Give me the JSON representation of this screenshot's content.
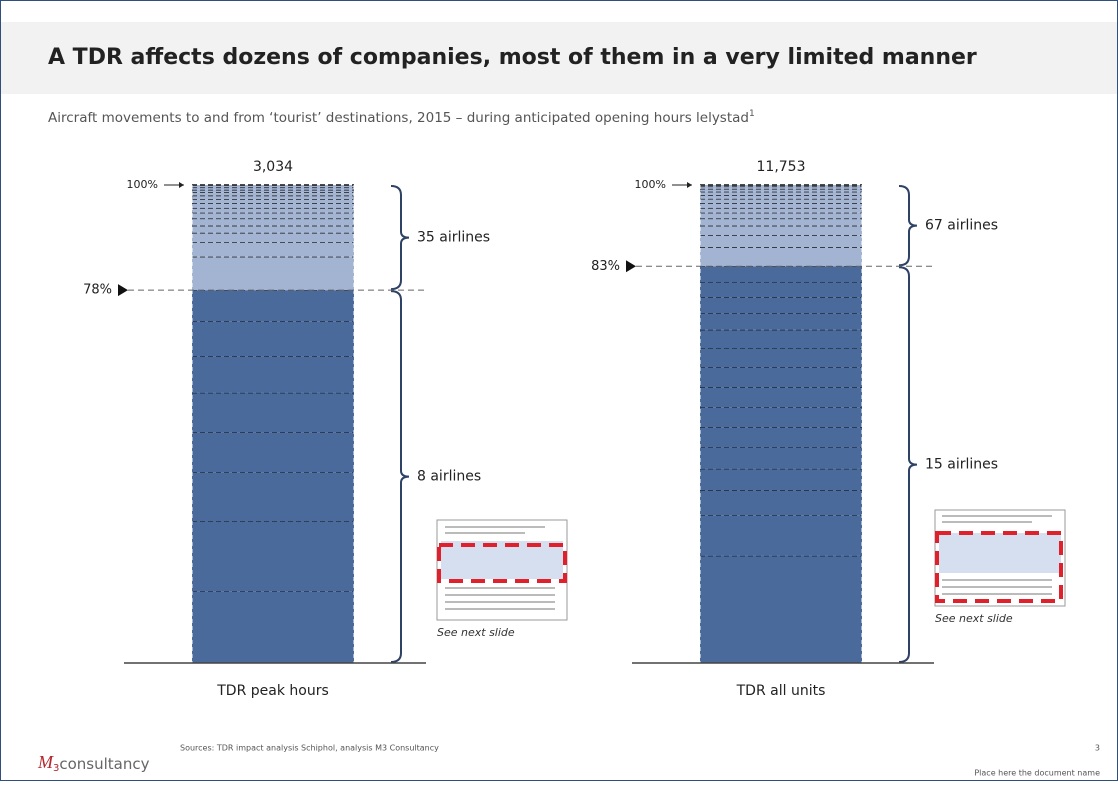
{
  "header": {
    "title": "A TDR affects dozens of companies, most of them in a very limited manner",
    "subtitle": "Aircraft movements to and from ‘tourist’ destinations, 2015 – during anticipated opening hours lelystad",
    "subtitle_note": "1"
  },
  "chart_data": [
    {
      "type": "stacked_bar",
      "category": "TDR peak hours",
      "total": {
        "value": 3034,
        "label": "3,034"
      },
      "ylim": [
        0,
        100
      ],
      "yticks": [
        {
          "value": 100,
          "label": "100%"
        }
      ],
      "marker": {
        "value": 78,
        "label": "78%"
      },
      "series": [
        {
          "name": "8 airlines",
          "color": "#4a6a9c",
          "values": [
            15,
            14.6,
            10.3,
            8.4,
            8.2,
            7.7,
            7.3,
            6.5
          ]
        },
        {
          "name": "35 airlines",
          "color": "#a3b4d2",
          "values": [
            7,
            3,
            2,
            1.5,
            1.5,
            1.2,
            1,
            1,
            0.8,
            0.8,
            0.7,
            0.5,
            0.5,
            0.5
          ]
        }
      ]
    },
    {
      "type": "stacked_bar",
      "category": "TDR all units",
      "total": {
        "value": 11753,
        "label": "11,753"
      },
      "ylim": [
        0,
        100
      ],
      "yticks": [
        {
          "value": 100,
          "label": "100%"
        }
      ],
      "marker": {
        "value": 83,
        "label": "83%"
      },
      "series": [
        {
          "name": "15 airlines",
          "color": "#4a6a9c",
          "values": [
            22.4,
            8.5,
            5.2,
            4.5,
            4.5,
            4.2,
            4.2,
            4.2,
            4.2,
            4,
            3.8,
            3.5,
            3.3,
            3.2,
            3.3
          ]
        },
        {
          "name": "67 airlines",
          "color": "#a3b4d2",
          "values": [
            4,
            2.5,
            2,
            1.5,
            1.2,
            1,
            1,
            0.9,
            0.8,
            0.7,
            0.6,
            0.5,
            0.3
          ]
        }
      ]
    }
  ],
  "thumbnails": [
    {
      "caption": "See next slide"
    },
    {
      "caption": "See next slide"
    }
  ],
  "footer": {
    "logo_mark": "M",
    "logo_sub": "3",
    "logo_text": "consultancy",
    "source": "Sources: TDR impact analysis Schiphol, analysis M3 Consultancy",
    "page_number": "3",
    "document_name": "Place here the document name"
  }
}
